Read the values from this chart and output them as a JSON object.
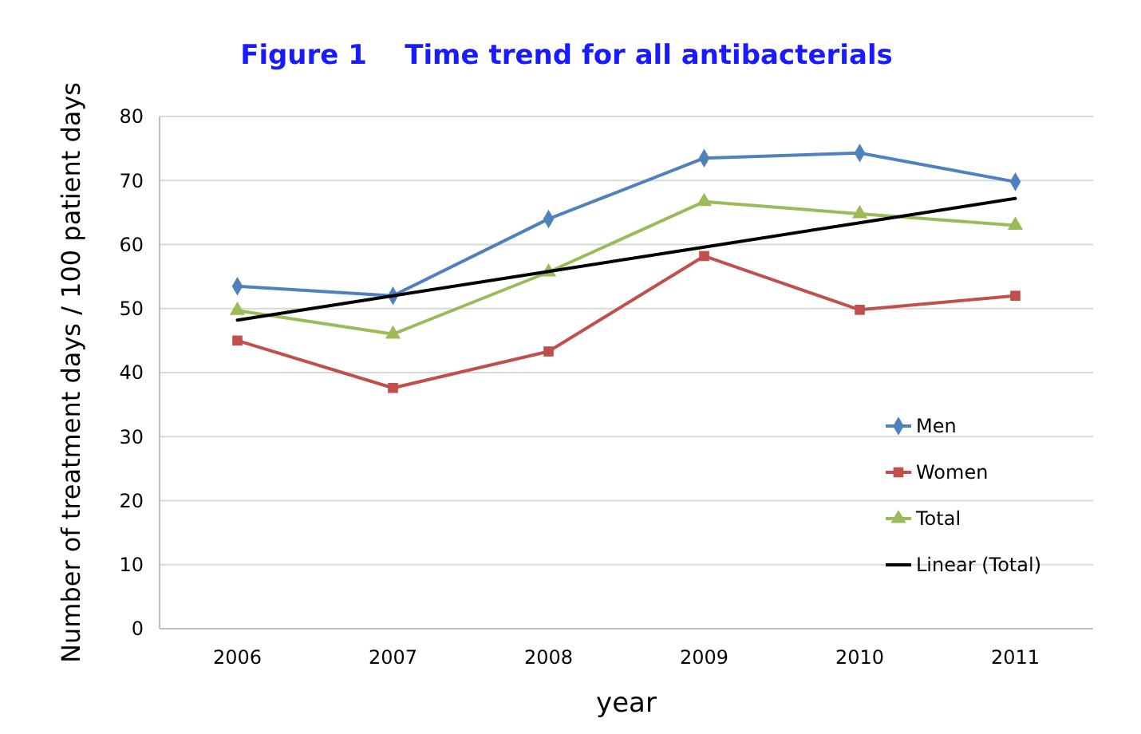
{
  "chart_data": {
    "type": "line",
    "title": "Figure 1    Time trend for all antibacterials",
    "xlabel": "year",
    "ylabel": "Number of treatment days / 100 patient days",
    "categories": [
      "2006",
      "2007",
      "2008",
      "2009",
      "2010",
      "2011"
    ],
    "series": [
      {
        "name": "Men",
        "color": "#4f81bd",
        "marker": "diamond",
        "values": [
          53.5,
          52,
          64,
          73.5,
          74.3,
          69.8
        ]
      },
      {
        "name": "Women",
        "color": "#c0504d",
        "marker": "square",
        "values": [
          45,
          37.6,
          43.3,
          58.2,
          49.8,
          52
        ]
      },
      {
        "name": "Total",
        "color": "#9bbb59",
        "marker": "triangle",
        "values": [
          49.7,
          46,
          55.7,
          66.7,
          64.8,
          63
        ]
      },
      {
        "name": "Linear (Total)",
        "color": "#000000",
        "marker": "none",
        "values": [
          48.2,
          52,
          55.8,
          59.6,
          63.4,
          67.2
        ]
      }
    ],
    "ylim": [
      0,
      80
    ],
    "yticks": [
      0,
      10,
      20,
      30,
      40,
      50,
      60,
      70,
      80
    ],
    "grid": "y",
    "legend": "bottom right",
    "line_style": "solid"
  }
}
